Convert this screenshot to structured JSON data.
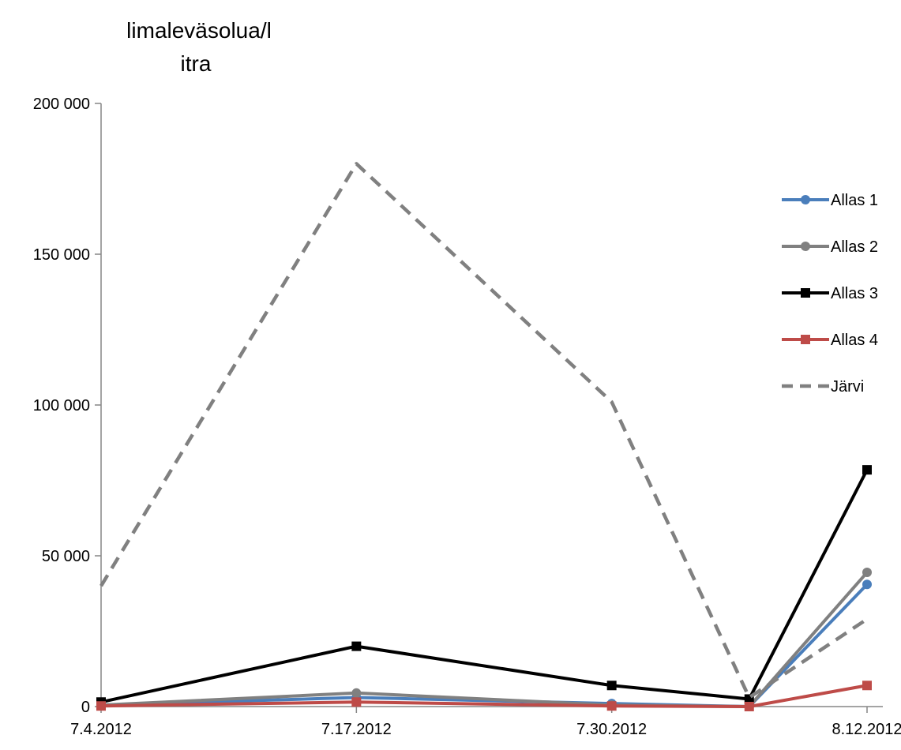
{
  "chart_data": {
    "type": "line",
    "title": "",
    "xlabel": "",
    "ylabel_lines": [
      "limaleväsolua/l",
      "itra"
    ],
    "ylim": [
      0,
      200000
    ],
    "yticks": [
      0,
      50000,
      100000,
      150000,
      200000
    ],
    "ytick_labels": [
      "0",
      "50 000",
      "100 000",
      "150 000",
      "200 000"
    ],
    "x": [
      "2012-07-04",
      "2012-07-17",
      "2012-07-30",
      "2012-08-06",
      "2012-08-12"
    ],
    "xlim": [
      "2012-07-04",
      "2012-08-12"
    ],
    "xtick_values": [
      "2012-07-04",
      "2012-07-17",
      "2012-07-30",
      "2012-08-12"
    ],
    "xtick_labels": [
      "7.4.2012",
      "7.17.2012",
      "7.30.2012",
      "8.12.2012"
    ],
    "legend_position": "right",
    "grid": false,
    "series": [
      {
        "name": "Allas 1",
        "values": [
          500,
          3000,
          1000,
          0,
          40500
        ],
        "color": "#4a7ebb",
        "marker": "circle",
        "dashed": false
      },
      {
        "name": "Allas 2",
        "values": [
          500,
          4500,
          500,
          0,
          44500
        ],
        "color": "#808080",
        "marker": "circle",
        "dashed": false
      },
      {
        "name": "Allas 3",
        "values": [
          1500,
          20000,
          7000,
          2500,
          78500
        ],
        "color": "#000000",
        "marker": "square",
        "dashed": false
      },
      {
        "name": "Allas 4",
        "values": [
          200,
          1500,
          200,
          0,
          7000
        ],
        "color": "#be4b48",
        "marker": "square",
        "dashed": false
      },
      {
        "name": "Järvi",
        "values": [
          40000,
          180000,
          101000,
          3000,
          29000
        ],
        "color": "#808080",
        "marker": "none",
        "dashed": true
      }
    ]
  }
}
